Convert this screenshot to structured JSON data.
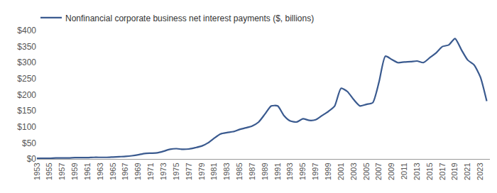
{
  "chart_data": {
    "type": "line",
    "x": [
      1953,
      1954,
      1955,
      1956,
      1957,
      1958,
      1959,
      1960,
      1961,
      1962,
      1963,
      1964,
      1965,
      1966,
      1967,
      1968,
      1969,
      1970,
      1971,
      1972,
      1973,
      1974,
      1975,
      1976,
      1977,
      1978,
      1979,
      1980,
      1981,
      1982,
      1983,
      1984,
      1985,
      1986,
      1987,
      1988,
      1989,
      1990,
      1991,
      1992,
      1993,
      1994,
      1995,
      1996,
      1997,
      1998,
      1999,
      2000,
      2001,
      2002,
      2003,
      2004,
      2005,
      2006,
      2007,
      2008,
      2009,
      2010,
      2011,
      2012,
      2013,
      2014,
      2015,
      2016,
      2017,
      2018,
      2019,
      2020,
      2021,
      2022,
      2023,
      2024
    ],
    "series": [
      {
        "name": "Nonfinancial corporate business net interest payments ($, billions)",
        "color": "#3a5a8f",
        "values": [
          2,
          2,
          2,
          3,
          3,
          3,
          4,
          4,
          4,
          5,
          5,
          5,
          6,
          7,
          8,
          10,
          13,
          17,
          18,
          19,
          24,
          30,
          32,
          30,
          31,
          35,
          40,
          50,
          65,
          78,
          82,
          85,
          92,
          97,
          103,
          115,
          140,
          165,
          165,
          135,
          118,
          115,
          125,
          120,
          122,
          135,
          148,
          165,
          220,
          210,
          185,
          165,
          170,
          175,
          240,
          320,
          310,
          300,
          302,
          303,
          305,
          300,
          315,
          330,
          350,
          355,
          375,
          340,
          308,
          293,
          255,
          180
        ]
      }
    ],
    "xlim": [
      1953,
      2024.5
    ],
    "xticks": [
      1953,
      1955,
      1957,
      1959,
      1961,
      1963,
      1965,
      1967,
      1969,
      1971,
      1973,
      1975,
      1977,
      1979,
      1981,
      1983,
      1985,
      1987,
      1989,
      1991,
      1993,
      1995,
      1997,
      1999,
      2001,
      2003,
      2005,
      2007,
      2009,
      2011,
      2013,
      2015,
      2017,
      2019,
      2021,
      2023
    ],
    "ylim": [
      0,
      400
    ],
    "yticks": [
      {
        "value": 0,
        "label": "$0"
      },
      {
        "value": 50,
        "label": "$50"
      },
      {
        "value": 100,
        "label": "$100"
      },
      {
        "value": 150,
        "label": "$150"
      },
      {
        "value": 200,
        "label": "$200"
      },
      {
        "value": 250,
        "label": "$250"
      },
      {
        "value": 300,
        "label": "$300"
      },
      {
        "value": 350,
        "label": "$350"
      },
      {
        "value": 400,
        "label": "$400"
      }
    ],
    "grid": false,
    "legend": "top left"
  }
}
